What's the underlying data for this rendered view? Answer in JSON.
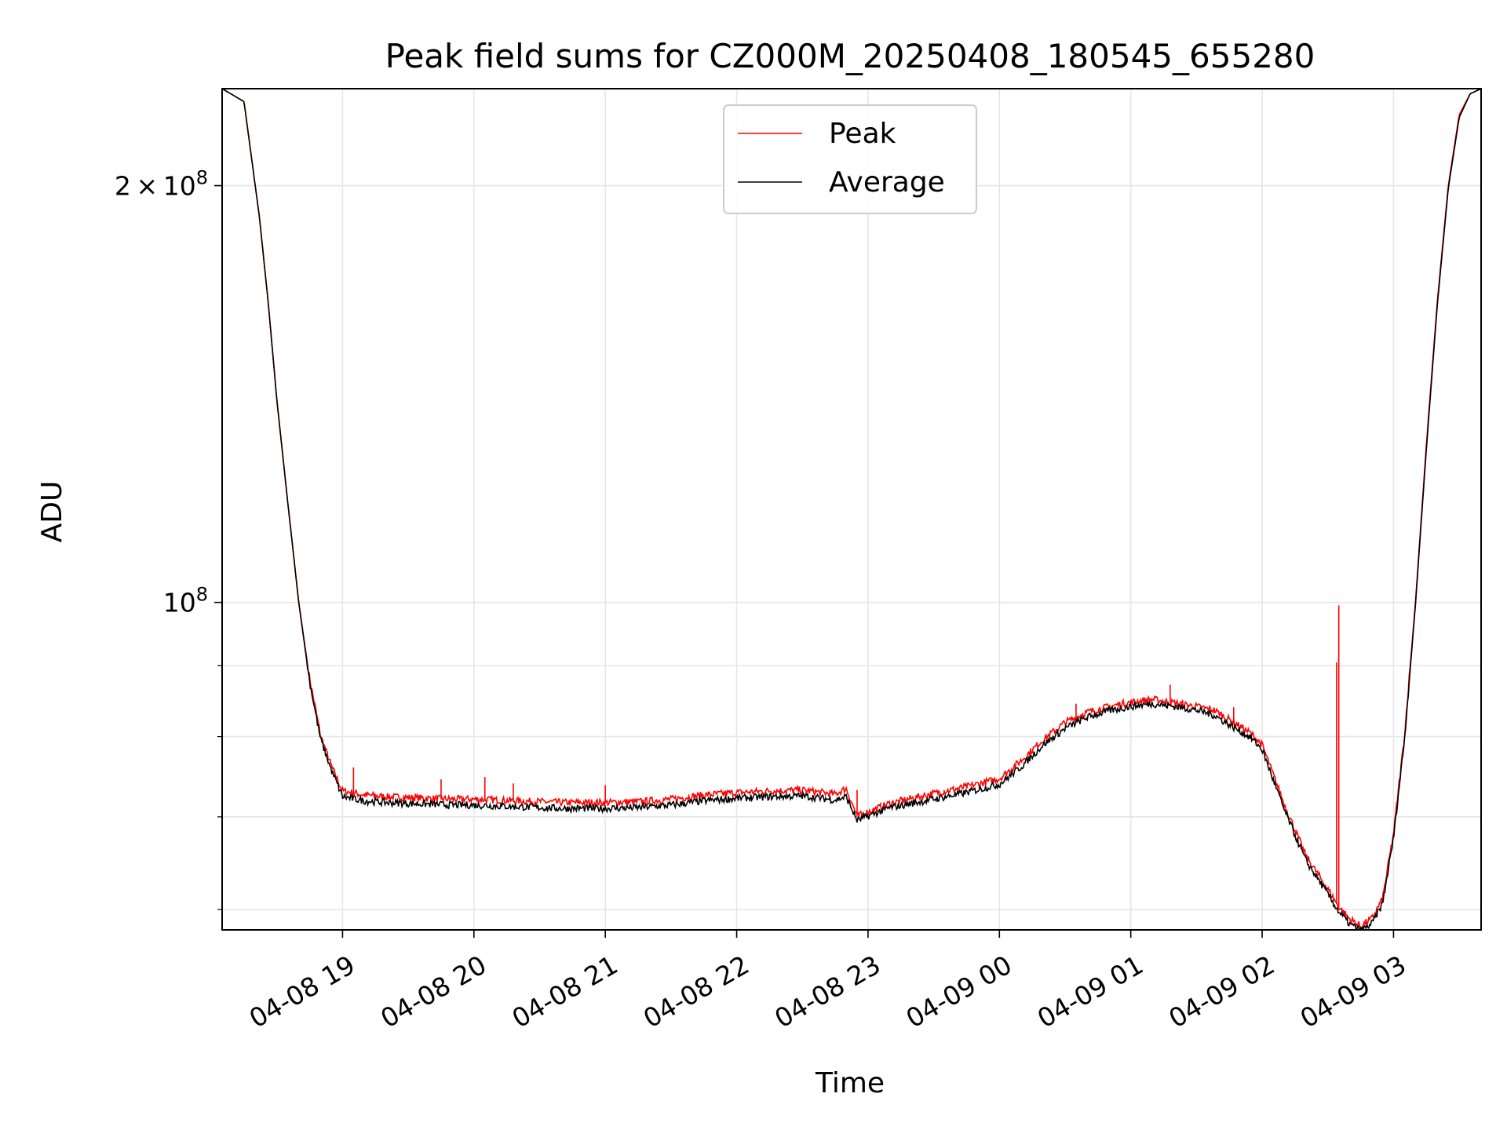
{
  "chart_data": {
    "type": "line",
    "title": "Peak field sums for CZ000M_20250408_180545_655280",
    "xlabel": "Time",
    "ylabel": "ADU",
    "yscale": "log",
    "grid": true,
    "legend_position": "upper center",
    "x_range": [
      "2025-04-08 18:05",
      "2025-04-09 03:40"
    ],
    "ylim": [
      58000000,
      235000000
    ],
    "x_ticks": [
      {
        "value": "2025-04-08 19:00",
        "label": "04-08 19"
      },
      {
        "value": "2025-04-08 20:00",
        "label": "04-08 20"
      },
      {
        "value": "2025-04-08 21:00",
        "label": "04-08 21"
      },
      {
        "value": "2025-04-08 22:00",
        "label": "04-08 22"
      },
      {
        "value": "2025-04-08 23:00",
        "label": "04-08 23"
      },
      {
        "value": "2025-04-09 00:00",
        "label": "04-09 00"
      },
      {
        "value": "2025-04-09 01:00",
        "label": "04-09 01"
      },
      {
        "value": "2025-04-09 02:00",
        "label": "04-09 02"
      },
      {
        "value": "2025-04-09 03:00",
        "label": "04-09 03"
      }
    ],
    "y_ticks": [
      {
        "value": 100000000,
        "base": "10",
        "exp": "8",
        "mantissa": ""
      },
      {
        "value": 200000000,
        "base": "10",
        "exp": "8",
        "mantissa": "2"
      }
    ],
    "y_minor_ticks": [
      60000000,
      70000000,
      80000000,
      90000000
    ],
    "series": [
      {
        "name": "Peak",
        "color": "#ff0000",
        "x": [
          "2025-04-08 18:05",
          "2025-04-08 18:15",
          "2025-04-08 18:22",
          "2025-04-08 18:26",
          "2025-04-08 18:30",
          "2025-04-08 18:35",
          "2025-04-08 18:40",
          "2025-04-08 18:45",
          "2025-04-08 18:50",
          "2025-04-08 18:55",
          "2025-04-08 19:00",
          "2025-04-08 19:10",
          "2025-04-08 19:20",
          "2025-04-08 19:30",
          "2025-04-08 19:40",
          "2025-04-08 19:50",
          "2025-04-08 20:00",
          "2025-04-08 20:10",
          "2025-04-08 20:20",
          "2025-04-08 20:30",
          "2025-04-08 20:40",
          "2025-04-08 20:50",
          "2025-04-08 21:00",
          "2025-04-08 21:15",
          "2025-04-08 21:30",
          "2025-04-08 21:45",
          "2025-04-08 22:00",
          "2025-04-08 22:15",
          "2025-04-08 22:30",
          "2025-04-08 22:45",
          "2025-04-08 22:50",
          "2025-04-08 22:55",
          "2025-04-08 23:10",
          "2025-04-08 23:30",
          "2025-04-08 23:45",
          "2025-04-09 00:00",
          "2025-04-09 00:10",
          "2025-04-09 00:20",
          "2025-04-09 00:30",
          "2025-04-09 00:40",
          "2025-04-09 00:50",
          "2025-04-09 01:00",
          "2025-04-09 01:10",
          "2025-04-09 01:20",
          "2025-04-09 01:30",
          "2025-04-09 01:38",
          "2025-04-09 01:45",
          "2025-04-09 01:55",
          "2025-04-09 02:00",
          "2025-04-09 02:10",
          "2025-04-09 02:20",
          "2025-04-09 02:30",
          "2025-04-09 02:35",
          "2025-04-09 02:40",
          "2025-04-09 02:45",
          "2025-04-09 02:50",
          "2025-04-09 02:55",
          "2025-04-09 03:00",
          "2025-04-09 03:05",
          "2025-04-09 03:10",
          "2025-04-09 03:15",
          "2025-04-09 03:20",
          "2025-04-09 03:25",
          "2025-04-09 03:30",
          "2025-04-09 03:35",
          "2025-04-09 03:40"
        ],
        "values": [
          235000000,
          230000000,
          190000000,
          165000000,
          140000000,
          118000000,
          100000000,
          88000000,
          80000000,
          76000000,
          73000000,
          72500000,
          72300000,
          72200000,
          72100000,
          72000000,
          72000000,
          71900000,
          71800000,
          71700000,
          71600000,
          71600000,
          71600000,
          71700000,
          72000000,
          72500000,
          72800000,
          73000000,
          73100000,
          72600000,
          73300000,
          70000000,
          71500000,
          72700000,
          73500000,
          74500000,
          76800000,
          79500000,
          81800000,
          83200000,
          84000000,
          84600000,
          85000000,
          84500000,
          84000000,
          83500000,
          82200000,
          80300000,
          78800000,
          71500000,
          65500000,
          62000000,
          60200000,
          59000000,
          58300000,
          59000000,
          61000000,
          68000000,
          80000000,
          100000000,
          130000000,
          165000000,
          200000000,
          225000000,
          233000000,
          235000000
        ],
        "spikes": [
          {
            "x": "2025-04-08 19:05",
            "value": 76000000
          },
          {
            "x": "2025-04-08 19:45",
            "value": 74500000
          },
          {
            "x": "2025-04-08 20:05",
            "value": 74800000
          },
          {
            "x": "2025-04-08 20:18",
            "value": 74000000
          },
          {
            "x": "2025-04-08 21:00",
            "value": 73800000
          },
          {
            "x": "2025-04-08 22:55",
            "value": 73200000
          },
          {
            "x": "2025-04-09 00:35",
            "value": 84500000
          },
          {
            "x": "2025-04-09 01:18",
            "value": 87200000
          },
          {
            "x": "2025-04-09 01:47",
            "value": 84000000
          },
          {
            "x": "2025-04-09 02:34",
            "value": 90500000
          },
          {
            "x": "2025-04-09 02:35",
            "value": 99500000
          }
        ]
      },
      {
        "name": "Average",
        "color": "#000000",
        "x": [
          "2025-04-08 18:05",
          "2025-04-08 18:15",
          "2025-04-08 18:22",
          "2025-04-08 18:26",
          "2025-04-08 18:30",
          "2025-04-08 18:35",
          "2025-04-08 18:40",
          "2025-04-08 18:45",
          "2025-04-08 18:50",
          "2025-04-08 18:55",
          "2025-04-08 19:00",
          "2025-04-08 19:10",
          "2025-04-08 19:20",
          "2025-04-08 19:30",
          "2025-04-08 19:40",
          "2025-04-08 19:50",
          "2025-04-08 20:00",
          "2025-04-08 20:10",
          "2025-04-08 20:20",
          "2025-04-08 20:30",
          "2025-04-08 20:40",
          "2025-04-08 20:50",
          "2025-04-08 21:00",
          "2025-04-08 21:15",
          "2025-04-08 21:30",
          "2025-04-08 21:45",
          "2025-04-08 22:00",
          "2025-04-08 22:15",
          "2025-04-08 22:30",
          "2025-04-08 22:45",
          "2025-04-08 22:50",
          "2025-04-08 22:55",
          "2025-04-08 23:10",
          "2025-04-08 23:30",
          "2025-04-08 23:45",
          "2025-04-09 00:00",
          "2025-04-09 00:10",
          "2025-04-09 00:20",
          "2025-04-09 00:30",
          "2025-04-09 00:40",
          "2025-04-09 00:50",
          "2025-04-09 01:00",
          "2025-04-09 01:10",
          "2025-04-09 01:20",
          "2025-04-09 01:30",
          "2025-04-09 01:38",
          "2025-04-09 01:45",
          "2025-04-09 01:55",
          "2025-04-09 02:00",
          "2025-04-09 02:10",
          "2025-04-09 02:20",
          "2025-04-09 02:30",
          "2025-04-09 02:35",
          "2025-04-09 02:40",
          "2025-04-09 02:45",
          "2025-04-09 02:50",
          "2025-04-09 02:55",
          "2025-04-09 03:00",
          "2025-04-09 03:05",
          "2025-04-09 03:10",
          "2025-04-09 03:15",
          "2025-04-09 03:20",
          "2025-04-09 03:25",
          "2025-04-09 03:30",
          "2025-04-09 03:35",
          "2025-04-09 03:40"
        ],
        "values": [
          235000000,
          230000000,
          190000000,
          165000000,
          140000000,
          118000000,
          100000000,
          87500000,
          79500000,
          75500000,
          72300000,
          71800000,
          71600000,
          71500000,
          71400000,
          71300000,
          71300000,
          71200000,
          71100000,
          71000000,
          70900000,
          70900000,
          70900000,
          71000000,
          71300000,
          71800000,
          72100000,
          72300000,
          72400000,
          71900000,
          72300000,
          69500000,
          71000000,
          72000000,
          72800000,
          73800000,
          76000000,
          78800000,
          81000000,
          82500000,
          83400000,
          84000000,
          84400000,
          84000000,
          83500000,
          82800000,
          81500000,
          79700000,
          78200000,
          70800000,
          65000000,
          61500000,
          59700000,
          58500000,
          57900000,
          58500000,
          60500000,
          67500000,
          79500000,
          99500000,
          129000000,
          164000000,
          199000000,
          224000000,
          233000000,
          235000000
        ]
      }
    ]
  }
}
